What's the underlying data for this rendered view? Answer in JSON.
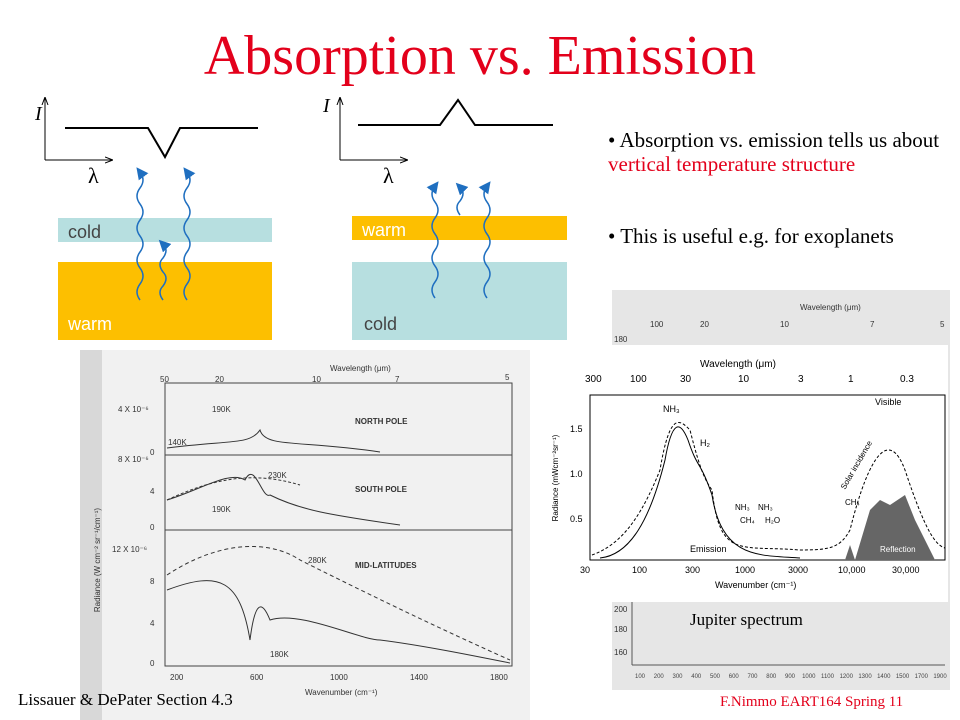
{
  "title": "Absorption vs. Emission",
  "diagram_left": {
    "intensity": "I",
    "wavelength": "λ",
    "top_layer": "cold",
    "bottom_layer": "warm"
  },
  "diagram_right": {
    "intensity": "I",
    "wavelength": "λ",
    "top_layer": "warm",
    "bottom_layer": "cold"
  },
  "bullets": [
    {
      "text": "Absorption vs. emission tells us about ",
      "highlight": "vertical temperature structure"
    },
    {
      "text": "This is useful e.g. for exoplanets"
    }
  ],
  "figure_left": {
    "top_axis_label": "Wavelength (μm)",
    "top_ticks": [
      "50",
      "20",
      "10",
      "7",
      "5"
    ],
    "panels": [
      "NORTH POLE",
      "SOUTH POLE",
      "MID-LATITUDES"
    ],
    "temperatures": [
      "190K",
      "140K",
      "230K",
      "190K",
      "280K",
      "180K"
    ],
    "y_ticks": [
      "4 X 10⁻⁶",
      "0",
      "8 X 10⁻⁶",
      "4",
      "0",
      "12 X 10⁻⁶",
      "8",
      "4",
      "0"
    ],
    "y_axis_label": "Radiance (W cm⁻² sr⁻¹/cm⁻¹)",
    "bottom_ticks": [
      "200",
      "600",
      "1000",
      "1400",
      "1800"
    ],
    "bottom_axis_label": "Wavenumber (cm⁻¹)"
  },
  "figure_right": {
    "top_axis_label": "Wavelength (μm)",
    "top_ticks": [
      "300",
      "100",
      "30",
      "10",
      "3",
      "1",
      "0.3"
    ],
    "visible": "Visible",
    "y_ticks": [
      "1.5",
      "1.0",
      "0.5"
    ],
    "y_axis_label": "Radiance (mWcm⁻²sr⁻¹)",
    "features": [
      "NH₃",
      "H₂",
      "NH₃",
      "NH₃",
      "CH₄",
      "H₂O",
      "CH₄"
    ],
    "emission": "Emission",
    "solar": "Solar incidence",
    "reflection": "Reflection",
    "bottom_ticks": [
      "30",
      "100",
      "300",
      "1000",
      "3000",
      "10,000",
      "30,000"
    ],
    "bottom_axis_label": "Wavenumber (cm⁻¹)",
    "caption": "Jupiter spectrum"
  },
  "figure_back": {
    "top_axis_label": "Wavelength (μm)",
    "top_ticks": [
      "100",
      "20",
      "10",
      "7",
      "5"
    ],
    "side_ticks": [
      "180",
      "200",
      "180",
      "160"
    ],
    "bottom_ticks": [
      "100",
      "200",
      "300",
      "400",
      "500",
      "600",
      "700",
      "800",
      "900",
      "1000",
      "1100",
      "1200",
      "1300",
      "1400",
      "1500",
      "1700",
      "1900"
    ]
  },
  "footer_left": "Lissauer & DePater Section 4.3",
  "footer_right": "F.Nimmo EART164 Spring 11"
}
